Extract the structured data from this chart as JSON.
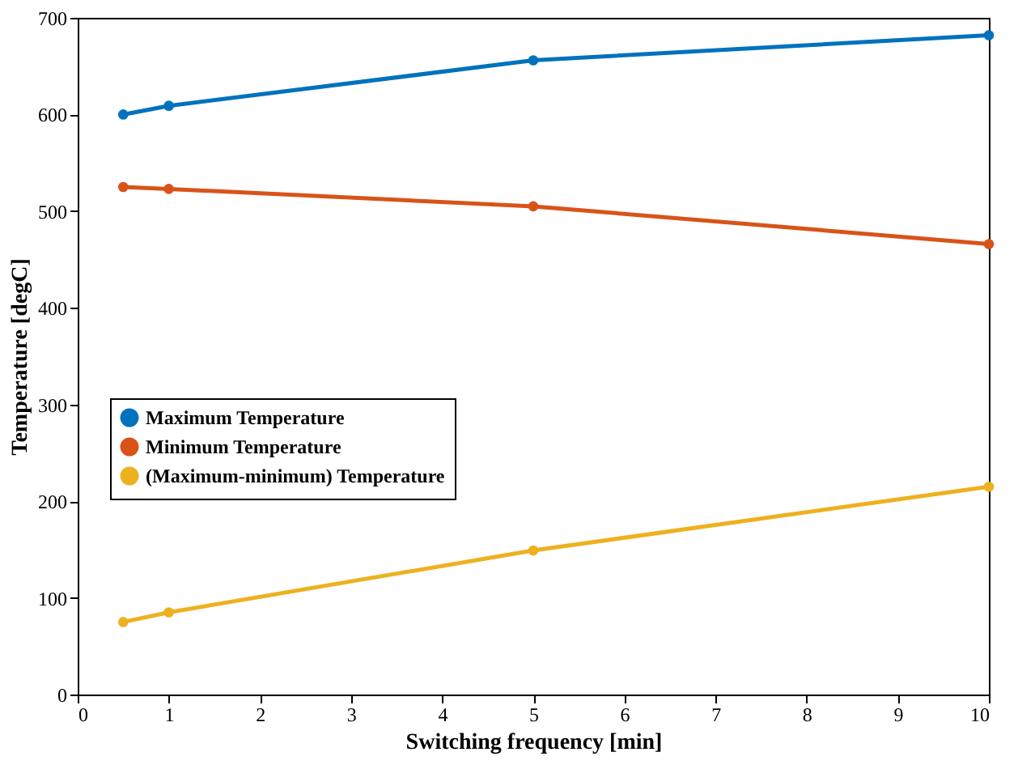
{
  "chart_data": {
    "type": "line",
    "xlabel": "Switching frequency [min]",
    "ylabel": "Temperature [degC]",
    "x": [
      0.5,
      1,
      5,
      10
    ],
    "series": [
      {
        "name": "Maximum Temperature",
        "color": "#0072bd",
        "values": [
          600,
          609,
          656,
          682
        ]
      },
      {
        "name": "Minimum Temperature",
        "color": "#d95319",
        "values": [
          525,
          523,
          505,
          466
        ]
      },
      {
        "name": "(Maximum-minimum) Temperature",
        "color": "#edb120",
        "values": [
          75,
          85,
          149,
          215
        ]
      }
    ],
    "xlim": [
      0,
      10
    ],
    "xticks": [
      0,
      1,
      2,
      3,
      4,
      5,
      6,
      7,
      8,
      9,
      10
    ],
    "ylim": [
      0,
      700
    ],
    "yticks": [
      0,
      100,
      200,
      300,
      400,
      500,
      600,
      700
    ],
    "grid": false,
    "legend": "left",
    "marker": "circle",
    "line_style": "solid"
  }
}
